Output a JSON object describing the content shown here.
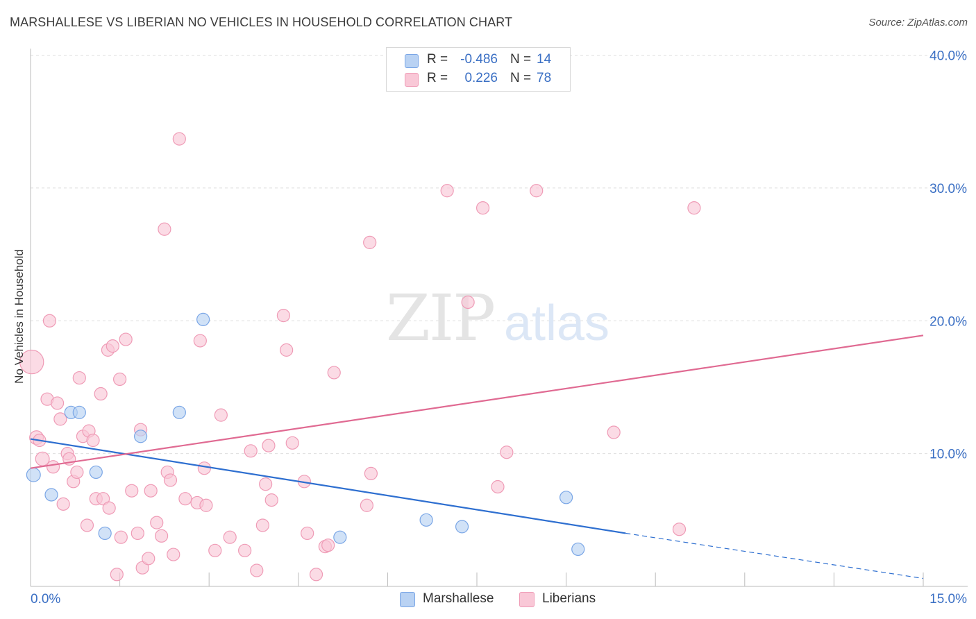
{
  "title": "MARSHALLESE VS LIBERIAN NO VEHICLES IN HOUSEHOLD CORRELATION CHART",
  "source": "Source: ZipAtlas.com",
  "watermark": {
    "zip": "ZIP",
    "atlas": "atlas"
  },
  "legend_stats": [
    {
      "r_label": "R =",
      "r_value": "-0.486",
      "n_label": "N =",
      "n_value": "14",
      "color": "#aac7f1"
    },
    {
      "r_label": "R =",
      "r_value": "0.226",
      "n_label": "N =",
      "n_value": "78",
      "color": "#f7b8cb"
    }
  ],
  "chart_data": {
    "type": "scatter",
    "title": "MARSHALLESE VS LIBERIAN NO VEHICLES IN HOUSEHOLD CORRELATION CHART",
    "xlabel": "",
    "ylabel": "No Vehicles in Household",
    "xlim": [
      0,
      15
    ],
    "ylim": [
      0,
      40.5
    ],
    "x_tick_labels": [
      "0.0%",
      "15.0%"
    ],
    "y_ticks": [
      10,
      20,
      30,
      40
    ],
    "y_tick_labels": [
      "10.0%",
      "20.0%",
      "30.0%",
      "40.0%"
    ],
    "grid": true,
    "legend_position": "bottom",
    "series": [
      {
        "name": "Marshallese",
        "color": "#7aa6e6",
        "fill": "#b9d2f3",
        "trend_color": "#2e6fd0",
        "trend": {
          "x0": 0,
          "y0": 11.1,
          "x1": 10.0,
          "y1": 4.0,
          "dashed_to_x": 15.0,
          "dashed_to_y": 0.6
        },
        "points": [
          {
            "x": 0.05,
            "y": 8.4,
            "s": 1.1
          },
          {
            "x": 0.35,
            "y": 6.9,
            "s": 1
          },
          {
            "x": 0.68,
            "y": 13.1,
            "s": 1
          },
          {
            "x": 0.82,
            "y": 13.1,
            "s": 1
          },
          {
            "x": 1.1,
            "y": 8.6,
            "s": 1
          },
          {
            "x": 1.25,
            "y": 4.0,
            "s": 1
          },
          {
            "x": 1.85,
            "y": 11.3,
            "s": 1
          },
          {
            "x": 2.5,
            "y": 13.1,
            "s": 1
          },
          {
            "x": 2.9,
            "y": 20.1,
            "s": 1
          },
          {
            "x": 5.2,
            "y": 3.7,
            "s": 1
          },
          {
            "x": 6.65,
            "y": 5.0,
            "s": 1
          },
          {
            "x": 7.25,
            "y": 4.5,
            "s": 1
          },
          {
            "x": 9.0,
            "y": 6.7,
            "s": 1
          },
          {
            "x": 9.2,
            "y": 2.8,
            "s": 1
          }
        ]
      },
      {
        "name": "Liberians",
        "color": "#ef9bb6",
        "fill": "#f9c8d7",
        "trend_color": "#e06a92",
        "trend": {
          "x0": 0,
          "y0": 8.9,
          "x1": 15.0,
          "y1": 18.9
        },
        "points": [
          {
            "x": 0.02,
            "y": 16.9,
            "s": 1.9
          },
          {
            "x": 0.1,
            "y": 11.2,
            "s": 1.1
          },
          {
            "x": 0.15,
            "y": 11.0,
            "s": 1
          },
          {
            "x": 0.2,
            "y": 9.6,
            "s": 1.1
          },
          {
            "x": 0.28,
            "y": 14.1,
            "s": 1
          },
          {
            "x": 0.32,
            "y": 20.0,
            "s": 1
          },
          {
            "x": 0.38,
            "y": 9.0,
            "s": 1
          },
          {
            "x": 0.45,
            "y": 13.8,
            "s": 1
          },
          {
            "x": 0.5,
            "y": 12.6,
            "s": 1
          },
          {
            "x": 0.55,
            "y": 6.2,
            "s": 1
          },
          {
            "x": 0.62,
            "y": 10.0,
            "s": 1
          },
          {
            "x": 0.65,
            "y": 9.6,
            "s": 1
          },
          {
            "x": 0.72,
            "y": 7.9,
            "s": 1
          },
          {
            "x": 0.78,
            "y": 8.6,
            "s": 1
          },
          {
            "x": 0.82,
            "y": 15.7,
            "s": 1
          },
          {
            "x": 0.88,
            "y": 11.3,
            "s": 1
          },
          {
            "x": 0.95,
            "y": 4.6,
            "s": 1
          },
          {
            "x": 0.98,
            "y": 11.7,
            "s": 1
          },
          {
            "x": 1.05,
            "y": 11.0,
            "s": 1
          },
          {
            "x": 1.1,
            "y": 6.6,
            "s": 1
          },
          {
            "x": 1.18,
            "y": 14.5,
            "s": 1
          },
          {
            "x": 1.22,
            "y": 6.6,
            "s": 1
          },
          {
            "x": 1.3,
            "y": 17.8,
            "s": 1
          },
          {
            "x": 1.32,
            "y": 5.9,
            "s": 1
          },
          {
            "x": 1.38,
            "y": 18.1,
            "s": 1
          },
          {
            "x": 1.45,
            "y": 0.9,
            "s": 1
          },
          {
            "x": 1.5,
            "y": 15.6,
            "s": 1
          },
          {
            "x": 1.52,
            "y": 3.7,
            "s": 1
          },
          {
            "x": 1.6,
            "y": 18.6,
            "s": 1
          },
          {
            "x": 1.7,
            "y": 7.2,
            "s": 1
          },
          {
            "x": 1.8,
            "y": 4.0,
            "s": 1
          },
          {
            "x": 1.85,
            "y": 11.8,
            "s": 1
          },
          {
            "x": 1.88,
            "y": 1.4,
            "s": 1
          },
          {
            "x": 1.98,
            "y": 2.1,
            "s": 1
          },
          {
            "x": 2.02,
            "y": 7.2,
            "s": 1
          },
          {
            "x": 2.12,
            "y": 4.8,
            "s": 1
          },
          {
            "x": 2.2,
            "y": 3.8,
            "s": 1
          },
          {
            "x": 2.25,
            "y": 26.9,
            "s": 1
          },
          {
            "x": 2.3,
            "y": 8.6,
            "s": 1
          },
          {
            "x": 2.35,
            "y": 8.0,
            "s": 1
          },
          {
            "x": 2.4,
            "y": 2.4,
            "s": 1
          },
          {
            "x": 2.5,
            "y": 33.7,
            "s": 1
          },
          {
            "x": 2.6,
            "y": 6.6,
            "s": 1
          },
          {
            "x": 2.8,
            "y": 6.3,
            "s": 1
          },
          {
            "x": 2.85,
            "y": 18.5,
            "s": 1
          },
          {
            "x": 2.92,
            "y": 8.9,
            "s": 1
          },
          {
            "x": 2.95,
            "y": 6.1,
            "s": 1
          },
          {
            "x": 3.1,
            "y": 2.7,
            "s": 1
          },
          {
            "x": 3.2,
            "y": 12.9,
            "s": 1
          },
          {
            "x": 3.35,
            "y": 3.7,
            "s": 1
          },
          {
            "x": 3.6,
            "y": 2.7,
            "s": 1
          },
          {
            "x": 3.7,
            "y": 10.2,
            "s": 1
          },
          {
            "x": 3.8,
            "y": 1.2,
            "s": 1
          },
          {
            "x": 3.9,
            "y": 4.6,
            "s": 1
          },
          {
            "x": 3.95,
            "y": 7.7,
            "s": 1
          },
          {
            "x": 4.0,
            "y": 10.6,
            "s": 1
          },
          {
            "x": 4.05,
            "y": 6.5,
            "s": 1
          },
          {
            "x": 4.25,
            "y": 20.4,
            "s": 1
          },
          {
            "x": 4.3,
            "y": 17.8,
            "s": 1
          },
          {
            "x": 4.4,
            "y": 10.8,
            "s": 1
          },
          {
            "x": 4.6,
            "y": 7.9,
            "s": 1
          },
          {
            "x": 4.65,
            "y": 4.0,
            "s": 1
          },
          {
            "x": 4.8,
            "y": 0.9,
            "s": 1
          },
          {
            "x": 4.95,
            "y": 3.0,
            "s": 1
          },
          {
            "x": 5.0,
            "y": 3.1,
            "s": 1
          },
          {
            "x": 5.1,
            "y": 16.1,
            "s": 1
          },
          {
            "x": 5.65,
            "y": 6.1,
            "s": 1
          },
          {
            "x": 5.7,
            "y": 25.9,
            "s": 1
          },
          {
            "x": 5.72,
            "y": 8.5,
            "s": 1
          },
          {
            "x": 7.0,
            "y": 29.8,
            "s": 1
          },
          {
            "x": 7.35,
            "y": 21.4,
            "s": 1
          },
          {
            "x": 7.6,
            "y": 28.5,
            "s": 1
          },
          {
            "x": 7.85,
            "y": 7.5,
            "s": 1
          },
          {
            "x": 8.0,
            "y": 10.1,
            "s": 1
          },
          {
            "x": 8.5,
            "y": 29.8,
            "s": 1
          },
          {
            "x": 9.8,
            "y": 11.6,
            "s": 1
          },
          {
            "x": 10.9,
            "y": 4.3,
            "s": 1
          },
          {
            "x": 11.15,
            "y": 28.5,
            "s": 1
          }
        ]
      }
    ]
  }
}
